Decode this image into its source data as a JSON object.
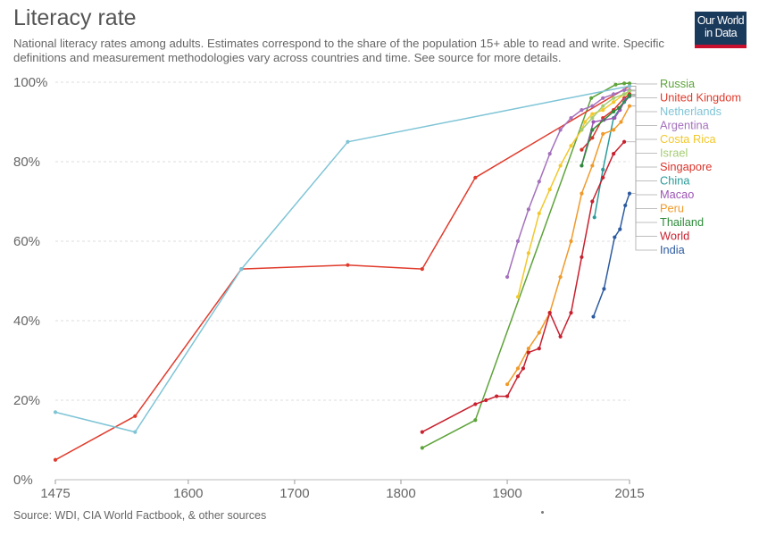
{
  "header": {
    "title": "Literacy rate",
    "subtitle": "National literacy rates among adults. Estimates correspond to the share of the population 15+ able to read and write. Specific definitions and measurement methodologies vary across countries and time. See source for more details.",
    "logo_line1": "Our World",
    "logo_line2": "in Data"
  },
  "footer": {
    "source": "Source: WDI, CIA World Factbook, & other sources"
  },
  "chart_data": {
    "type": "line",
    "title": "Literacy rate",
    "xlabel": "",
    "ylabel": "",
    "xlim": [
      1475,
      2015
    ],
    "ylim": [
      0,
      100
    ],
    "x_ticks": [
      "1475",
      "1600",
      "1700",
      "1800",
      "1900",
      "2015"
    ],
    "y_ticks": [
      "0%",
      "20%",
      "40%",
      "60%",
      "80%",
      "100%"
    ],
    "grid": "horizontal dashed",
    "legend_position": "right",
    "series": [
      {
        "name": "Russia",
        "color": "#5da33a",
        "x": [
          1820,
          1870,
          1979,
          2002,
          2010,
          2015
        ],
        "y": [
          8,
          15,
          96,
          99.4,
          99.7,
          99.7
        ]
      },
      {
        "name": "United Kingdom",
        "color": "#e03b2c",
        "x": [
          1475,
          1550,
          1650,
          1750,
          1820,
          1870,
          2015
        ],
        "y": [
          5,
          16,
          53,
          54,
          53,
          76,
          99
        ]
      },
      {
        "name": "Netherlands",
        "color": "#7ec4d6",
        "x": [
          1475,
          1550,
          1650,
          1750,
          2015
        ],
        "y": [
          17,
          12,
          53,
          85,
          99
        ]
      },
      {
        "name": "Argentina",
        "color": "#a471bd",
        "x": [
          1900,
          1910,
          1920,
          1930,
          1940,
          1950,
          1960,
          1970,
          1980,
          1990,
          2000,
          2010,
          2015
        ],
        "y": [
          51,
          60,
          68,
          75,
          82,
          88,
          91,
          93,
          94,
          96,
          97,
          98,
          98
        ]
      },
      {
        "name": "Costa Rica",
        "color": "#f2c82c",
        "x": [
          1910,
          1920,
          1930,
          1940,
          1950,
          1960,
          1970,
          1973,
          1980,
          1990,
          2000,
          2010,
          2015
        ],
        "y": [
          46,
          57,
          67,
          73,
          79,
          84,
          88,
          90,
          92,
          93,
          95,
          97,
          97
        ]
      },
      {
        "name": "Israel",
        "color": "#a5cc73",
        "x": [
          1970,
          1980,
          1990,
          2000,
          2010,
          2015
        ],
        "y": [
          88,
          91,
          94,
          96,
          97,
          97.8
        ]
      },
      {
        "name": "Singapore",
        "color": "#d9342b",
        "x": [
          1970,
          1980,
          1990,
          2000,
          2010,
          2015
        ],
        "y": [
          83,
          86,
          91,
          93,
          96,
          97
        ]
      },
      {
        "name": "China",
        "color": "#2a9a99",
        "x": [
          1982,
          1990,
          2000,
          2010,
          2015
        ],
        "y": [
          66,
          78,
          91,
          95,
          96.4
        ]
      },
      {
        "name": "Macao",
        "color": "#9c55b5",
        "x": [
          1970,
          1981,
          1991,
          2001,
          2006,
          2011,
          2015
        ],
        "y": [
          79,
          90,
          90.5,
          91,
          93,
          95.6,
          96.5
        ]
      },
      {
        "name": "Peru",
        "color": "#f09a2a",
        "x": [
          1900,
          1910,
          1920,
          1930,
          1940,
          1950,
          1960,
          1970,
          1980,
          1990,
          2000,
          2007,
          2015
        ],
        "y": [
          24,
          28,
          33,
          37,
          42,
          51,
          60,
          72,
          79,
          87,
          88,
          90,
          94
        ]
      },
      {
        "name": "Thailand",
        "color": "#2e8b3a",
        "x": [
          1970,
          1980,
          2000,
          2005,
          2015
        ],
        "y": [
          79,
          88,
          92.6,
          93.5,
          96.7
        ]
      },
      {
        "name": "World",
        "color": "#c8202e",
        "x": [
          1820,
          1870,
          1880,
          1890,
          1900,
          1910,
          1915,
          1920,
          1930,
          1940,
          1950,
          1960,
          1970,
          1980,
          1990,
          2000,
          2010
        ],
        "y": [
          12,
          19,
          20,
          21,
          21,
          26,
          28,
          32,
          33,
          42,
          36,
          42,
          56,
          70,
          76,
          82,
          85
        ]
      },
      {
        "name": "India",
        "color": "#2c5aa0",
        "x": [
          1981,
          1991,
          2001,
          2006,
          2011,
          2015
        ],
        "y": [
          41,
          48,
          61,
          63,
          69,
          72
        ]
      }
    ]
  }
}
